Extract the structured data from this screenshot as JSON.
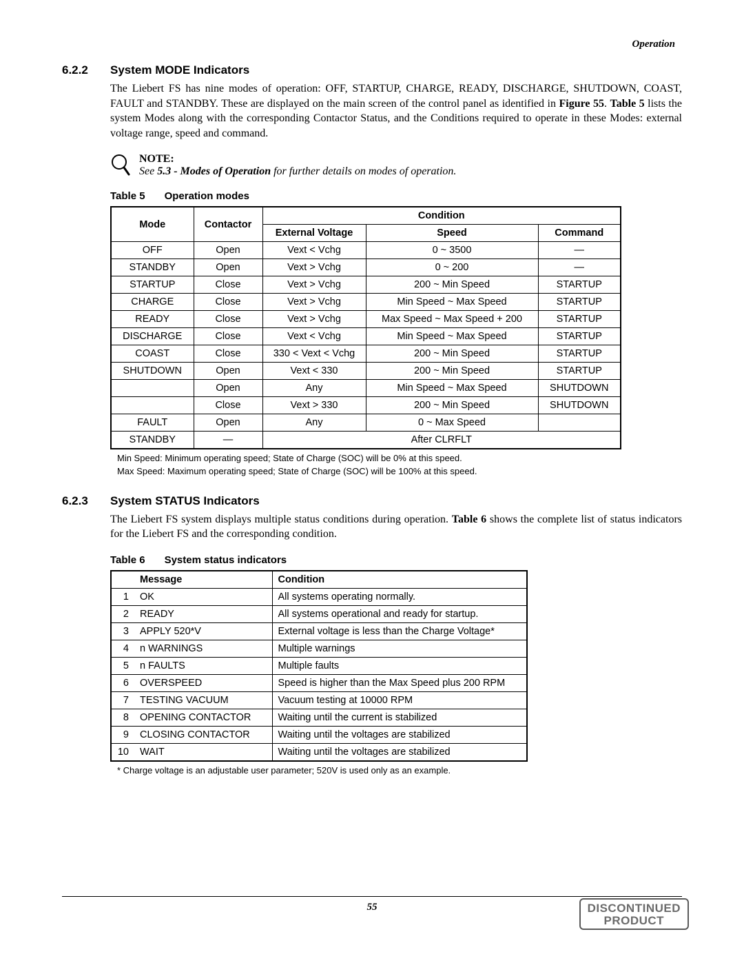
{
  "header": {
    "section_name": "Operation"
  },
  "s622": {
    "number": "6.2.2",
    "title": "System MODE Indicators",
    "para_a": "The Liebert FS has nine modes of operation: OFF, STARTUP, CHARGE, READY, DISCHARGE, SHUTDOWN, COAST, FAULT and STANDBY. These are displayed on the main screen of the control panel as identified in ",
    "fig_ref": "Figure 55",
    "para_b": ". ",
    "tbl_ref": "Table 5",
    "para_c": " lists the system Modes along with the corresponding Contactor Status, and the Conditions required to operate in these Modes: external voltage range, speed and command."
  },
  "note": {
    "label": "NOTE:",
    "pre": "See ",
    "bold": "5.3 - Modes of Operation",
    "post": " for further details on modes of operation."
  },
  "table5": {
    "label": "Table 5",
    "title": "Operation modes",
    "head": {
      "mode": "Mode",
      "contactor": "Contactor",
      "condition": "Condition",
      "ext_voltage": "External Voltage",
      "speed": "Speed",
      "command": "Command"
    },
    "rows": [
      {
        "mode": "OFF",
        "cont": "Open",
        "volt": "Vext < Vchg",
        "speed": "0 ~ 3500",
        "cmd": "—"
      },
      {
        "mode": "STANDBY",
        "cont": "Open",
        "volt": "Vext > Vchg",
        "speed": "0 ~ 200",
        "cmd": "—"
      },
      {
        "mode": "STARTUP",
        "cont": "Close",
        "volt": "Vext > Vchg",
        "speed": "200 ~ Min Speed",
        "cmd": "STARTUP"
      },
      {
        "mode": "CHARGE",
        "cont": "Close",
        "volt": "Vext > Vchg",
        "speed": "Min Speed ~ Max Speed",
        "cmd": "STARTUP"
      },
      {
        "mode": "READY",
        "cont": "Close",
        "volt": "Vext > Vchg",
        "speed": "Max Speed ~ Max Speed + 200",
        "cmd": "STARTUP"
      },
      {
        "mode": "DISCHARGE",
        "cont": "Close",
        "volt": "Vext < Vchg",
        "speed": "Min Speed ~ Max Speed",
        "cmd": "STARTUP"
      },
      {
        "mode": "COAST",
        "cont": "Close",
        "volt": "330 < Vext < Vchg",
        "speed": "200 ~ Min Speed",
        "cmd": "STARTUP"
      },
      {
        "mode": "SHUTDOWN",
        "cont": "Open",
        "volt": "Vext < 330",
        "speed": "200 ~ Min Speed",
        "cmd": "STARTUP"
      },
      {
        "mode": "",
        "cont": "Open",
        "volt": "Any",
        "speed": "Min Speed ~ Max Speed",
        "cmd": "SHUTDOWN"
      },
      {
        "mode": "",
        "cont": "Close",
        "volt": "Vext > 330",
        "speed": "200 ~ Min Speed",
        "cmd": "SHUTDOWN"
      },
      {
        "mode": "FAULT",
        "cont": "Open",
        "volt": "Any",
        "speed": "0 ~ Max Speed",
        "cmd": ""
      },
      {
        "mode": "STANDBY",
        "cont": "—",
        "volt": "",
        "speed": "After CLRFLT",
        "cmd": "",
        "span_after": true
      }
    ],
    "footnote1": "Min Speed: Minimum operating speed; State of Charge (SOC) will be 0% at this speed.",
    "footnote2": "Max Speed: Maximum operating speed; State of Charge (SOC) will be 100% at this speed."
  },
  "s623": {
    "number": "6.2.3",
    "title": "System STATUS Indicators",
    "para_a": "The Liebert FS system displays multiple status conditions during operation. ",
    "tbl_ref": "Table 6",
    "para_b": " shows the complete list of status indicators for the Liebert FS and the corresponding condition."
  },
  "table6": {
    "label": "Table 6",
    "title": "System status indicators",
    "head": {
      "message": "Message",
      "condition": "Condition"
    },
    "rows": [
      {
        "n": "1",
        "msg": "OK",
        "cond": "All systems operating normally."
      },
      {
        "n": "2",
        "msg": "READY",
        "cond": "All systems operational and ready for startup."
      },
      {
        "n": "3",
        "msg": "APPLY 520*V",
        "cond": "External voltage is less than the Charge Voltage*"
      },
      {
        "n": "4",
        "msg": "n WARNINGS",
        "cond": "Multiple warnings"
      },
      {
        "n": "5",
        "msg": "n FAULTS",
        "cond": "Multiple faults"
      },
      {
        "n": "6",
        "msg": "OVERSPEED",
        "cond": "Speed is higher than the Max Speed plus 200 RPM"
      },
      {
        "n": "7",
        "msg": "TESTING VACUUM",
        "cond": "Vacuum testing at 10000 RPM"
      },
      {
        "n": "8",
        "msg": "OPENING CONTACTOR",
        "cond": "Waiting until the current is stabilized"
      },
      {
        "n": "9",
        "msg": "CLOSING CONTACTOR",
        "cond": "Waiting until the voltages are stabilized"
      },
      {
        "n": "10",
        "msg": "WAIT",
        "cond": "Waiting until the voltages are stabilized"
      }
    ],
    "footnote": "* Charge voltage is an adjustable user parameter; 520V is used only as an example."
  },
  "footer": {
    "page_number": "55",
    "stamp_line1": "DISCONTINUED",
    "stamp_line2": "PRODUCT"
  }
}
